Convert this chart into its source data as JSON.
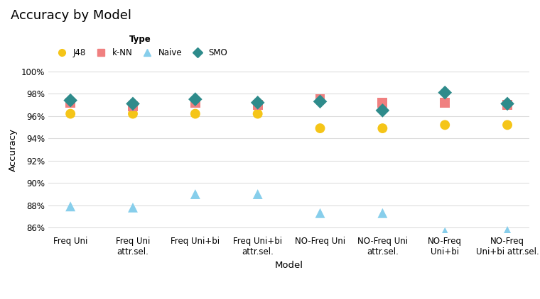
{
  "title": "Accuracy by Model",
  "xlabel": "Model",
  "ylabel": "Accuracy",
  "categories": [
    "Freq Uni",
    "Freq Uni\nattr.sel.",
    "Freq Uni+bi",
    "Freq Uni+bi\nattr.sel.",
    "NO-Freq Uni",
    "NO-Freq Uni\nattr.sel.",
    "NO-Freq\nUni+bi",
    "NO-Freq\nUni+bi attr.sel."
  ],
  "ylim": [
    85.5,
    100.5
  ],
  "yticks": [
    86,
    88,
    90,
    92,
    94,
    96,
    98,
    100
  ],
  "series": {
    "J48": {
      "color": "#F5C518",
      "marker": "o",
      "values": [
        96.2,
        96.2,
        96.2,
        96.2,
        94.9,
        94.9,
        95.2,
        95.2
      ]
    },
    "k-NN": {
      "color": "#F08080",
      "marker": "s",
      "values": [
        97.2,
        96.9,
        97.2,
        97.0,
        97.5,
        97.2,
        97.2,
        97.0
      ]
    },
    "Naive": {
      "color": "#87CEEB",
      "marker": "^",
      "values": [
        87.9,
        87.8,
        89.0,
        89.0,
        87.3,
        87.3,
        85.6,
        85.7
      ]
    },
    "SMO": {
      "color": "#2E8B8B",
      "marker": "D",
      "values": [
        97.4,
        97.1,
        97.5,
        97.2,
        97.3,
        96.5,
        98.1,
        97.1
      ]
    }
  },
  "legend_title": "Type",
  "background_color": "#ffffff",
  "grid_color": "#dddddd"
}
